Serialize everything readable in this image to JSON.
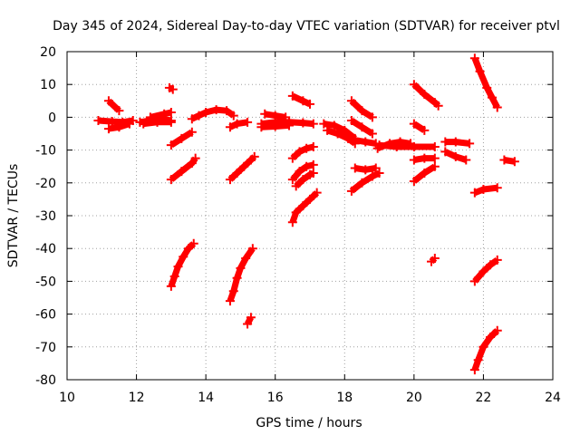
{
  "chart_data": {
    "type": "scatter",
    "title": "Day 345 of 2024, Sidereal Day-to-day VTEC variation (SDTVAR) for receiver ptvl",
    "xlabel": "GPS time / hours",
    "ylabel": "SDTVAR / TECUs",
    "xlim": [
      10,
      24
    ],
    "ylim": [
      -80,
      20
    ],
    "xticks": [
      "10",
      "12",
      "14",
      "16",
      "18",
      "20",
      "22",
      "24"
    ],
    "yticks": [
      "20",
      "10",
      "0",
      "-10",
      "-20",
      "-30",
      "-40",
      "-50",
      "-60",
      "-70",
      "-80"
    ],
    "grid": true,
    "marker_color": "#ff0000",
    "tracks": [
      {
        "name": "track-01",
        "points": [
          [
            10.9,
            -1
          ],
          [
            11.3,
            -1.3
          ],
          [
            11.6,
            -1.5
          ],
          [
            11.9,
            -1
          ]
        ]
      },
      {
        "name": "track-02",
        "points": [
          [
            11.2,
            -3.5
          ],
          [
            11.5,
            -3
          ],
          [
            11.8,
            -2
          ]
        ]
      },
      {
        "name": "track-03",
        "points": [
          [
            11.2,
            5
          ],
          [
            11.5,
            2
          ]
        ]
      },
      {
        "name": "track-04",
        "points": [
          [
            12.1,
            -1.5
          ],
          [
            12.4,
            -1
          ],
          [
            12.7,
            -0.5
          ],
          [
            13.0,
            -1
          ]
        ]
      },
      {
        "name": "track-05",
        "points": [
          [
            12.2,
            -2
          ],
          [
            12.6,
            -1.5
          ],
          [
            13.0,
            -1.5
          ]
        ]
      },
      {
        "name": "track-06",
        "points": [
          [
            12.4,
            0
          ],
          [
            12.8,
            1
          ],
          [
            13.0,
            1.5
          ]
        ]
      },
      {
        "name": "track-07",
        "points": [
          [
            12.95,
            9
          ],
          [
            13.05,
            8.5
          ]
        ]
      },
      {
        "name": "track-08",
        "points": [
          [
            13.0,
            -8.5
          ],
          [
            13.3,
            -6.5
          ],
          [
            13.6,
            -4.5
          ]
        ]
      },
      {
        "name": "track-09",
        "points": [
          [
            13.6,
            -0.5
          ],
          [
            13.8,
            0.5
          ],
          [
            14.0,
            1.5
          ],
          [
            14.3,
            2.3
          ],
          [
            14.6,
            2
          ],
          [
            14.8,
            0.5
          ]
        ]
      },
      {
        "name": "track-10",
        "points": [
          [
            13.0,
            -19
          ],
          [
            13.3,
            -16.5
          ],
          [
            13.6,
            -14
          ],
          [
            13.7,
            -12.5
          ]
        ]
      },
      {
        "name": "track-11",
        "points": [
          [
            13.0,
            -51.5
          ],
          [
            13.1,
            -48.5
          ],
          [
            13.2,
            -45.5
          ],
          [
            13.35,
            -42.5
          ],
          [
            13.5,
            -40
          ],
          [
            13.65,
            -38.5
          ]
        ]
      },
      {
        "name": "track-12",
        "points": [
          [
            14.7,
            -3
          ],
          [
            14.9,
            -2
          ],
          [
            15.2,
            -1.5
          ]
        ]
      },
      {
        "name": "track-13",
        "points": [
          [
            14.7,
            -19
          ],
          [
            14.9,
            -17
          ],
          [
            15.1,
            -15
          ],
          [
            15.3,
            -13
          ],
          [
            15.4,
            -12
          ]
        ]
      },
      {
        "name": "track-14",
        "points": [
          [
            14.7,
            -56
          ],
          [
            14.8,
            -53
          ],
          [
            14.9,
            -49
          ],
          [
            15.0,
            -46
          ],
          [
            15.15,
            -43
          ],
          [
            15.35,
            -40
          ]
        ]
      },
      {
        "name": "track-15",
        "points": [
          [
            15.2,
            -63
          ],
          [
            15.3,
            -61
          ]
        ]
      },
      {
        "name": "track-16",
        "points": [
          [
            15.6,
            -2
          ],
          [
            16.0,
            -1.5
          ],
          [
            16.4,
            -1.5
          ],
          [
            16.8,
            -1.7
          ],
          [
            17.1,
            -2
          ]
        ]
      },
      {
        "name": "track-17",
        "points": [
          [
            15.6,
            -3
          ],
          [
            16.0,
            -2.8
          ],
          [
            16.4,
            -2.5
          ]
        ]
      },
      {
        "name": "track-18",
        "points": [
          [
            15.7,
            1
          ],
          [
            16.0,
            0.5
          ],
          [
            16.3,
            0
          ]
        ]
      },
      {
        "name": "track-19",
        "points": [
          [
            16.5,
            6.5
          ],
          [
            16.8,
            5
          ],
          [
            17.0,
            4
          ]
        ]
      },
      {
        "name": "track-20",
        "points": [
          [
            16.5,
            -12.5
          ],
          [
            16.7,
            -10.5
          ],
          [
            16.9,
            -9.5
          ],
          [
            17.1,
            -9
          ]
        ]
      },
      {
        "name": "track-21",
        "points": [
          [
            16.5,
            -19
          ],
          [
            16.7,
            -16.5
          ],
          [
            16.9,
            -15
          ],
          [
            17.1,
            -14.5
          ]
        ]
      },
      {
        "name": "track-22",
        "points": [
          [
            16.6,
            -21
          ],
          [
            16.8,
            -19
          ],
          [
            17.0,
            -17.5
          ],
          [
            17.1,
            -17
          ]
        ]
      },
      {
        "name": "track-23",
        "points": [
          [
            16.5,
            -32
          ],
          [
            16.6,
            -29
          ],
          [
            16.8,
            -27
          ],
          [
            17.0,
            -25
          ],
          [
            17.2,
            -23
          ]
        ]
      },
      {
        "name": "track-24",
        "points": [
          [
            17.4,
            -2
          ],
          [
            17.7,
            -2.5
          ],
          [
            18.0,
            -4
          ],
          [
            18.3,
            -6.5
          ]
        ]
      },
      {
        "name": "track-25",
        "points": [
          [
            17.5,
            -4
          ],
          [
            17.8,
            -5
          ],
          [
            18.1,
            -6.5
          ],
          [
            18.3,
            -8
          ]
        ]
      },
      {
        "name": "track-26",
        "points": [
          [
            18.2,
            5
          ],
          [
            18.5,
            2
          ],
          [
            18.8,
            0
          ]
        ]
      },
      {
        "name": "track-27",
        "points": [
          [
            18.2,
            -1
          ],
          [
            18.5,
            -3
          ],
          [
            18.8,
            -5
          ]
        ]
      },
      {
        "name": "track-28",
        "points": [
          [
            18.3,
            -7
          ],
          [
            18.6,
            -7.5
          ],
          [
            18.9,
            -8
          ]
        ]
      },
      {
        "name": "track-29",
        "points": [
          [
            18.3,
            -15.5
          ],
          [
            18.6,
            -16
          ],
          [
            18.9,
            -15.5
          ]
        ]
      },
      {
        "name": "track-30",
        "points": [
          [
            18.2,
            -22.5
          ],
          [
            18.5,
            -20
          ],
          [
            18.8,
            -18
          ],
          [
            19.0,
            -17
          ]
        ]
      },
      {
        "name": "track-31",
        "points": [
          [
            18.95,
            -9.5
          ],
          [
            19.3,
            -8
          ],
          [
            19.6,
            -7.5
          ],
          [
            19.9,
            -8
          ]
        ]
      },
      {
        "name": "track-32",
        "points": [
          [
            19.0,
            -8.5
          ],
          [
            19.5,
            -9
          ],
          [
            20.0,
            -9
          ],
          [
            20.6,
            -9
          ]
        ]
      },
      {
        "name": "track-33",
        "points": [
          [
            20.0,
            -2
          ],
          [
            20.3,
            -4
          ]
        ]
      },
      {
        "name": "track-34",
        "points": [
          [
            20.0,
            -13
          ],
          [
            20.3,
            -12.5
          ],
          [
            20.6,
            -12.5
          ]
        ]
      },
      {
        "name": "track-35",
        "points": [
          [
            20.0,
            -19.5
          ],
          [
            20.3,
            -17
          ],
          [
            20.6,
            -15
          ]
        ]
      },
      {
        "name": "track-36",
        "points": [
          [
            20.0,
            10
          ],
          [
            20.3,
            7
          ],
          [
            20.6,
            4.5
          ],
          [
            20.7,
            3.5
          ]
        ]
      },
      {
        "name": "track-37",
        "points": [
          [
            20.5,
            -44
          ],
          [
            20.6,
            -43
          ]
        ]
      },
      {
        "name": "track-38",
        "points": [
          [
            20.9,
            -7.5
          ],
          [
            21.2,
            -7.5
          ],
          [
            21.6,
            -8
          ]
        ]
      },
      {
        "name": "track-39",
        "points": [
          [
            20.9,
            -10.5
          ],
          [
            21.2,
            -12
          ],
          [
            21.5,
            -13
          ]
        ]
      },
      {
        "name": "track-40",
        "points": [
          [
            21.75,
            18
          ],
          [
            21.9,
            14
          ],
          [
            22.1,
            9
          ],
          [
            22.25,
            6
          ],
          [
            22.4,
            3
          ]
        ]
      },
      {
        "name": "track-41",
        "points": [
          [
            21.75,
            -23
          ],
          [
            22.0,
            -22
          ],
          [
            22.4,
            -21.5
          ]
        ]
      },
      {
        "name": "track-42",
        "points": [
          [
            21.75,
            -50
          ],
          [
            22.0,
            -47
          ],
          [
            22.2,
            -45
          ],
          [
            22.4,
            -43.5
          ]
        ]
      },
      {
        "name": "track-43",
        "points": [
          [
            21.75,
            -77
          ],
          [
            21.85,
            -74
          ],
          [
            22.0,
            -70
          ],
          [
            22.2,
            -67
          ],
          [
            22.4,
            -65
          ]
        ]
      },
      {
        "name": "track-44",
        "points": [
          [
            22.6,
            -13
          ],
          [
            22.9,
            -13.5
          ]
        ]
      }
    ]
  }
}
